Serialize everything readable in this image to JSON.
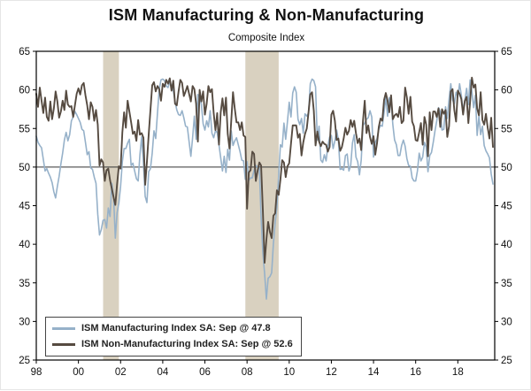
{
  "title": "ISM Manufacturing & Non-Manufacturing",
  "subtitle": "Composite Index",
  "colors": {
    "manufacturing_line": "#96b1c9",
    "non_manufacturing_line": "#564b41",
    "recession_band": "#d9d1c0",
    "axis": "#000000",
    "reference_line": "#333333",
    "background": "#ffffff"
  },
  "chart_data": {
    "type": "line",
    "title": "ISM Manufacturing & Non-Manufacturing",
    "subtitle": "Composite Index",
    "ylim": [
      25,
      65
    ],
    "yticks": [
      25,
      30,
      35,
      40,
      45,
      50,
      55,
      60,
      65
    ],
    "y_axis_sides": "both",
    "grid": false,
    "reference_line": 50,
    "x_domain": [
      1998,
      2019.75
    ],
    "x_ticks": [
      1998,
      2000,
      2002,
      2004,
      2006,
      2008,
      2010,
      2012,
      2014,
      2016,
      2018
    ],
    "x_tick_labels": [
      "98",
      "00",
      "02",
      "04",
      "06",
      "08",
      "10",
      "12",
      "14",
      "16",
      "18"
    ],
    "x_start_year": 1998,
    "frequency": "monthly",
    "recession_bands": [
      [
        2001.17,
        2001.92
      ],
      [
        2007.92,
        2009.5
      ]
    ],
    "recession_band_color": "#d9d1c0",
    "legend_position": "bottom-left",
    "series": [
      {
        "name": "ISM Manufacturing Index SA: Sep @ 47.8",
        "color": "#96b1c9",
        "last_point": {
          "month": "Sep",
          "value": 47.8
        },
        "values": [
          54.0,
          53.2,
          52.8,
          52.5,
          51.0,
          49.5,
          49.8,
          49.2,
          48.7,
          48.0,
          46.8,
          46.0,
          47.5,
          48.8,
          50.4,
          51.8,
          53.5,
          54.5,
          53.4,
          54.2,
          56.0,
          56.5,
          57.2,
          56.8,
          56.3,
          55.8,
          54.9,
          54.7,
          53.2,
          51.6,
          52.0,
          49.9,
          49.7,
          48.7,
          47.9,
          43.9,
          41.2,
          41.9,
          43.1,
          43.2,
          42.1,
          44.7,
          43.6,
          47.9,
          46.2,
          40.8,
          44.1,
          45.3,
          47.5,
          50.7,
          52.4,
          52.4,
          53.1,
          53.6,
          50.2,
          50.5,
          49.5,
          48.5,
          48.2,
          51.6,
          53.9,
          50.5,
          46.2,
          45.4,
          49.4,
          49.8,
          51.8,
          54.7,
          53.7,
          57.0,
          60.1,
          61.3,
          61.4,
          61.2,
          60.5,
          60.3,
          61.1,
          60.5,
          59.9,
          58.5,
          57.4,
          56.8,
          56.7,
          57.3,
          56.4,
          55.3,
          55.2,
          53.3,
          51.4,
          53.8,
          56.6,
          53.6,
          59.4,
          59.1,
          58.1,
          55.6,
          54.8,
          56.0,
          55.2,
          57.3,
          54.4,
          53.8,
          54.7,
          54.5,
          52.9,
          51.2,
          49.5,
          51.4,
          49.3,
          52.3,
          50.9,
          54.7,
          52.8,
          53.4,
          53.8,
          52.9,
          52.0,
          50.9,
          50.8,
          48.4,
          50.7,
          48.3,
          48.6,
          48.6,
          49.6,
          50.2,
          50.0,
          49.9,
          43.5,
          38.9,
          36.2,
          32.9,
          35.6,
          35.8,
          36.3,
          40.1,
          42.8,
          44.8,
          48.9,
          52.9,
          52.6,
          55.7,
          53.6,
          55.9,
          58.4,
          56.5,
          59.6,
          60.4,
          59.7,
          56.2,
          55.5,
          56.3,
          54.4,
          56.9,
          56.6,
          57.0,
          60.8,
          61.4,
          61.2,
          60.4,
          53.5,
          55.3,
          50.9,
          50.6,
          51.6,
          50.8,
          52.7,
          53.9,
          54.1,
          52.4,
          53.4,
          54.8,
          53.5,
          49.7,
          49.8,
          49.6,
          51.5,
          51.7,
          49.5,
          50.2,
          53.1,
          54.2,
          51.3,
          50.7,
          49.0,
          50.9,
          55.4,
          55.7,
          56.2,
          56.4,
          57.3,
          56.5,
          51.3,
          53.2,
          53.7,
          54.9,
          55.4,
          55.3,
          57.1,
          59.0,
          56.6,
          59.0,
          58.7,
          55.5,
          53.5,
          52.9,
          51.5,
          51.5,
          52.8,
          53.5,
          52.7,
          51.1,
          50.2,
          50.1,
          48.6,
          48.2,
          48.2,
          49.5,
          51.8,
          50.8,
          51.3,
          53.2,
          52.6,
          49.4,
          51.5,
          51.9,
          53.2,
          54.7,
          56.0,
          57.7,
          57.2,
          54.8,
          54.9,
          57.8,
          56.3,
          58.8,
          60.8,
          58.7,
          58.2,
          59.7,
          59.1,
          60.8,
          59.3,
          57.3,
          58.7,
          60.2,
          58.1,
          61.3,
          59.8,
          57.7,
          59.3,
          54.1,
          56.6,
          54.2,
          55.3,
          52.8,
          52.1,
          51.7,
          51.2,
          49.1,
          47.8
        ]
      },
      {
        "name": "ISM Non-Manufacturing Index SA: Sep @ 52.6",
        "color": "#564b41",
        "last_point": {
          "month": "Sep",
          "value": 52.6
        },
        "values": [
          59.5,
          57.8,
          60.3,
          58.6,
          57.0,
          59.0,
          56.5,
          56.0,
          58.5,
          56.2,
          57.6,
          59.8,
          58.5,
          56.4,
          57.2,
          58.6,
          57.4,
          59.9,
          58.1,
          57.8,
          57.9,
          56.5,
          58.0,
          59.5,
          60.2,
          59.4,
          60.6,
          60.9,
          59.3,
          58.0,
          56.2,
          58.4,
          57.8,
          56.0,
          57.4,
          55.5,
          50.2,
          51.0,
          50.6,
          48.2,
          49.6,
          49.8,
          48.3,
          47.2,
          46.1,
          45.1,
          47.8,
          50.1,
          49.8,
          54.5,
          57.1,
          55.1,
          58.6,
          57.2,
          55.8,
          54.3,
          54.6,
          53.4,
          56.1,
          54.2,
          54.4,
          53.8,
          47.7,
          50.7,
          54.2,
          57.4,
          60.6,
          61.0,
          59.8,
          60.5,
          60.1,
          58.6,
          60.8,
          60.4,
          61.3,
          60.8,
          61.5,
          59.9,
          61.2,
          58.2,
          58.0,
          59.8,
          61.3,
          60.9,
          59.2,
          59.8,
          60.5,
          59.5,
          58.5,
          60.5,
          60.1,
          58.2,
          53.3,
          60.0,
          58.5,
          59.8,
          56.8,
          58.2,
          60.5,
          59.7,
          60.1,
          57.0,
          54.8,
          57.0,
          52.9,
          57.1,
          58.9,
          56.7,
          59.0,
          54.3,
          52.4,
          56.0,
          59.7,
          57.6,
          55.8,
          55.8,
          54.8,
          55.8,
          54.1,
          53.9,
          44.6,
          49.3,
          49.6,
          52.0,
          51.7,
          48.2,
          49.5,
          50.6,
          50.2,
          44.4,
          37.6,
          40.6,
          42.9,
          41.6,
          40.8,
          43.7,
          44.0,
          47.0,
          46.4,
          48.4,
          50.9,
          50.6,
          48.7,
          50.1,
          50.5,
          53.0,
          55.4,
          55.4,
          55.4,
          53.8,
          54.3,
          51.5,
          53.2,
          54.3,
          55.0,
          57.1,
          59.4,
          59.7,
          57.3,
          52.8,
          54.6,
          53.3,
          52.7,
          53.3,
          53.0,
          52.9,
          52.0,
          52.6,
          56.8,
          57.3,
          56.0,
          53.5,
          53.7,
          52.1,
          52.6,
          53.7,
          55.1,
          54.2,
          54.7,
          56.1,
          55.2,
          56.0,
          54.4,
          53.1,
          53.7,
          52.2,
          56.0,
          58.6,
          54.4,
          55.4,
          53.9,
          53.0,
          54.0,
          51.6,
          53.1,
          55.2,
          56.3,
          56.0,
          58.7,
          59.6,
          58.6,
          57.1,
          59.3,
          56.2,
          56.7,
          56.9,
          56.5,
          57.8,
          55.7,
          56.0,
          60.3,
          59.0,
          56.9,
          59.1,
          55.9,
          55.3,
          53.5,
          53.4,
          54.5,
          55.7,
          52.9,
          56.5,
          55.5,
          51.4,
          57.1,
          54.8,
          57.2,
          57.2,
          56.5,
          57.6,
          55.2,
          57.5,
          56.9,
          57.4,
          53.9,
          55.3,
          59.8,
          60.1,
          57.4,
          55.9,
          59.9,
          59.5,
          58.8,
          56.8,
          58.6,
          59.1,
          55.7,
          58.5,
          61.6,
          60.3,
          60.7,
          57.6,
          56.7,
          59.7,
          56.1,
          55.5,
          56.9,
          55.1,
          53.7,
          56.4,
          52.6
        ]
      }
    ]
  },
  "legend": {
    "entries": [
      {
        "label": "ISM Manufacturing Index SA: Sep @ 47.8"
      },
      {
        "label": "ISM Non-Manufacturing Index SA: Sep @ 52.6"
      }
    ]
  }
}
